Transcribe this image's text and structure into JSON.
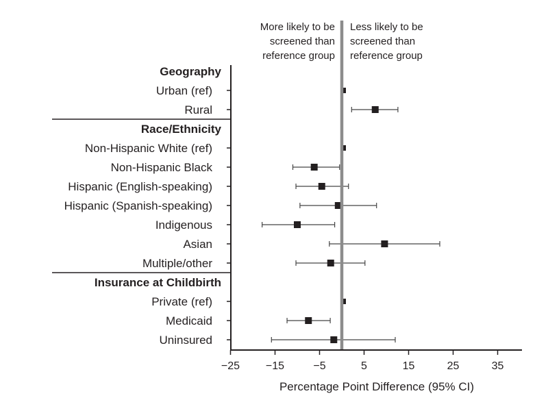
{
  "chart_data": {
    "type": "forest",
    "xlabel": "Percentage Point Difference (95% CI)",
    "xlim": [
      -25,
      40
    ],
    "xticks": [
      -25,
      -15,
      -5,
      5,
      15,
      25,
      35
    ],
    "xtick_labels": [
      "−25",
      "−15",
      "−5",
      "5",
      "15",
      "25",
      "35"
    ],
    "reference_line": 0,
    "annotations": {
      "left": [
        "More likely to be",
        "screened than",
        "reference group"
      ],
      "right": [
        "Less likely to be",
        "screened than",
        "reference group"
      ]
    },
    "groups": [
      {
        "name": "Geography",
        "rows": [
          {
            "label": "Urban (ref)",
            "estimate": 0,
            "lower": 0,
            "upper": 0
          },
          {
            "label": "Rural",
            "estimate": 7.5,
            "lower": 2.2,
            "upper": 12.6
          }
        ]
      },
      {
        "name": "Race/Ethnicity",
        "rows": [
          {
            "label": "Non-Hispanic White (ref)",
            "estimate": 0,
            "lower": 0,
            "upper": 0
          },
          {
            "label": "Non-Hispanic Black",
            "estimate": -6.2,
            "lower": -11.0,
            "upper": -0.5
          },
          {
            "label": "Hispanic (English-speaking)",
            "estimate": -4.5,
            "lower": -10.3,
            "upper": 1.5
          },
          {
            "label": "Hispanic (Spanish-speaking)",
            "estimate": -0.8,
            "lower": -9.4,
            "upper": 7.8
          },
          {
            "label": "Indigenous",
            "estimate": -10.0,
            "lower": -17.9,
            "upper": -1.6
          },
          {
            "label": "Asian",
            "estimate": 9.6,
            "lower": -2.8,
            "upper": 22.0
          },
          {
            "label": "Multiple/other",
            "estimate": -2.5,
            "lower": -10.3,
            "upper": 5.2
          }
        ]
      },
      {
        "name": "Insurance at Childbirth",
        "rows": [
          {
            "label": "Private (ref)",
            "estimate": 0,
            "lower": 0,
            "upper": 0
          },
          {
            "label": "Medicaid",
            "estimate": -7.5,
            "lower": -12.3,
            "upper": -2.6
          },
          {
            "label": "Uninsured",
            "estimate": -1.8,
            "lower": -15.8,
            "upper": 12.0
          }
        ]
      }
    ]
  }
}
